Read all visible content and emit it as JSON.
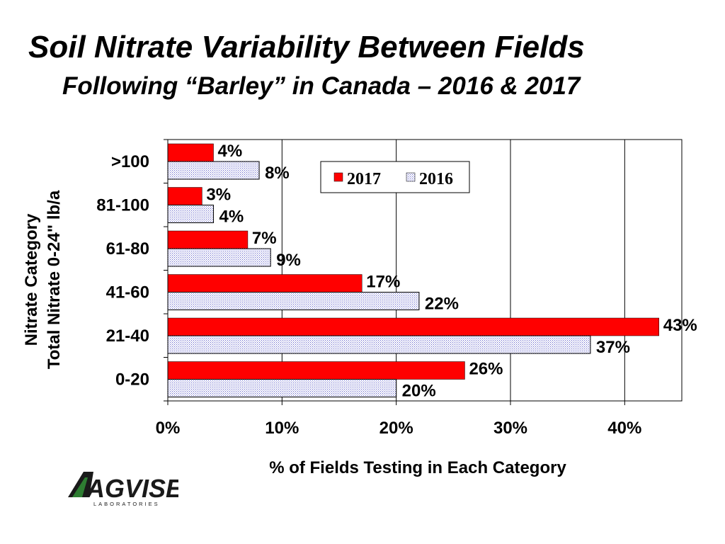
{
  "title": "Soil Nitrate Variability Between Fields",
  "subtitle": "Following “Barley” in Canada – 2016 & 2017",
  "logo": {
    "name": "AGVISE",
    "sub": "LABORATORIES"
  },
  "colors": {
    "s2017": "#ff0000",
    "s2016": "#ffffff",
    "dots2016": "#6a6acc"
  },
  "chart_data": {
    "type": "bar",
    "orientation": "horizontal",
    "categories": [
      ">100",
      "81-100",
      "61-80",
      "41-60",
      "21-40",
      "0-20"
    ],
    "series": [
      {
        "name": "2017",
        "values": [
          4,
          3,
          7,
          17,
          43,
          26
        ],
        "labels": [
          "4%",
          "3%",
          "7%",
          "17%",
          "43%",
          "26%"
        ]
      },
      {
        "name": "2016",
        "values": [
          8,
          4,
          9,
          22,
          37,
          20
        ],
        "labels": [
          "8%",
          "4%",
          "9%",
          "22%",
          "37%",
          "20%"
        ]
      }
    ],
    "xlabel": "% of Fields Testing in Each Category",
    "ylabel": [
      "Nitrate Category",
      "Total Nitrate 0-24\" lb/a"
    ],
    "xlim": [
      0,
      45
    ],
    "xticks": [
      0,
      10,
      20,
      30,
      40
    ],
    "xtick_labels": [
      "0%",
      "10%",
      "20%",
      "30%",
      "40%"
    ],
    "grid": "vertical",
    "legend": "top-right"
  }
}
